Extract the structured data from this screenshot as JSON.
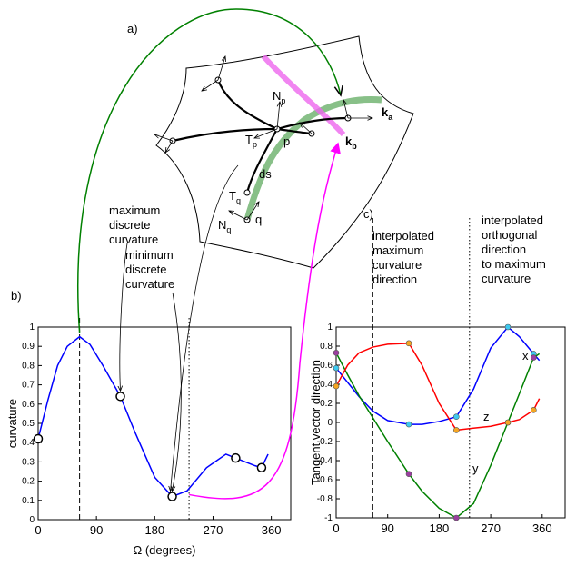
{
  "diagram": {
    "panel_label": "a)",
    "labels": [
      {
        "main": "N",
        "sub": "p"
      },
      {
        "main": "T",
        "sub": "p"
      },
      {
        "main": "p",
        "sub": ""
      },
      {
        "main": "ds",
        "sub": ""
      },
      {
        "main": "T",
        "sub": "q"
      },
      {
        "main": "N",
        "sub": "q"
      },
      {
        "main": "q",
        "sub": ""
      },
      {
        "main": "k",
        "sub": "a"
      },
      {
        "main": "k",
        "sub": "b"
      }
    ]
  },
  "chart_data": [
    {
      "type": "line",
      "panel_label": "b)",
      "ylabel": "curvature",
      "xlabel": "Ω (degrees)",
      "x": [
        0,
        15,
        30,
        45,
        64,
        80,
        100,
        127,
        150,
        180,
        207,
        230,
        260,
        290,
        305,
        320,
        335,
        345,
        355
      ],
      "series": [
        {
          "color": "#0000ff",
          "values": [
            0.42,
            0.62,
            0.8,
            0.9,
            0.95,
            0.91,
            0.8,
            0.64,
            0.45,
            0.22,
            0.12,
            0.15,
            0.27,
            0.34,
            0.32,
            0.3,
            0.28,
            0.27,
            0.34
          ]
        }
      ],
      "marker_x": [
        0,
        127,
        207,
        305,
        345
      ],
      "marker_values": [
        0.42,
        0.64,
        0.12,
        0.32,
        0.27
      ],
      "marker_color": "#ffffff",
      "xlim": [
        0,
        390
      ],
      "ylim": [
        0,
        1
      ],
      "xticks": [
        0,
        90,
        180,
        270,
        360
      ],
      "yticks": [
        0,
        0.1,
        0.2,
        0.3,
        0.4,
        0.5,
        0.6,
        0.7,
        0.8,
        0.9,
        1
      ],
      "vlines": [
        {
          "x": 64,
          "style": "dashed"
        },
        {
          "x": 233,
          "style": "dotted"
        }
      ],
      "annotations": [
        {
          "lines": [
            "maximum",
            "discrete",
            "curvature"
          ]
        },
        {
          "lines": [
            "minimum",
            "discrete",
            "curvature"
          ]
        }
      ]
    },
    {
      "type": "line",
      "panel_label": "c)",
      "ylabel": "Tangent vector direction",
      "x": [
        0,
        20,
        40,
        64,
        90,
        127,
        150,
        180,
        210,
        240,
        270,
        300,
        320,
        345,
        355
      ],
      "series": [
        {
          "name": "x",
          "color": "#0000ff",
          "marker_color": "#3ec9f0",
          "values": [
            0.57,
            0.42,
            0.27,
            0.12,
            0.02,
            -0.02,
            -0.02,
            0.01,
            0.06,
            0.35,
            0.78,
            1.0,
            0.9,
            0.72,
            0.65
          ],
          "marker_values": [
            0.57,
            -0.02,
            0.06,
            1.0,
            0.72
          ]
        },
        {
          "name": "y",
          "color": "#008000",
          "marker_color": "#9b3fa0",
          "values": [
            0.73,
            0.5,
            0.28,
            0.05,
            -0.2,
            -0.54,
            -0.72,
            -0.9,
            -1.0,
            -0.85,
            -0.45,
            0.0,
            0.3,
            0.68,
            0.72
          ],
          "marker_values": [
            0.73,
            -0.54,
            -1.0,
            0.0,
            0.68
          ]
        },
        {
          "name": "z",
          "color": "#ff0000",
          "marker_color": "#f5a623",
          "values": [
            0.38,
            0.6,
            0.73,
            0.79,
            0.82,
            0.83,
            0.6,
            0.2,
            -0.08,
            -0.06,
            -0.04,
            0.0,
            0.03,
            0.13,
            0.25
          ],
          "marker_values": [
            0.38,
            0.83,
            -0.08,
            0.0,
            0.13
          ]
        }
      ],
      "marker_x": [
        0,
        127,
        210,
        300,
        345
      ],
      "xlim": [
        0,
        400
      ],
      "ylim": [
        -1,
        1
      ],
      "xticks": [
        0,
        90,
        180,
        270,
        360
      ],
      "yticks": [
        -1,
        -0.8,
        -0.6,
        -0.4,
        -0.2,
        0,
        0.2,
        0.4,
        0.6,
        0.8,
        1
      ],
      "vlines": [
        {
          "x": 64,
          "style": "dashed"
        },
        {
          "x": 233,
          "style": "dotted"
        }
      ],
      "annotations": [
        {
          "lines": [
            "interpolated",
            "maximum",
            "curvature",
            "direction"
          ]
        },
        {
          "lines": [
            "interpolated",
            "orthogonal",
            "direction",
            "to maximum",
            "curvature"
          ]
        }
      ]
    }
  ]
}
